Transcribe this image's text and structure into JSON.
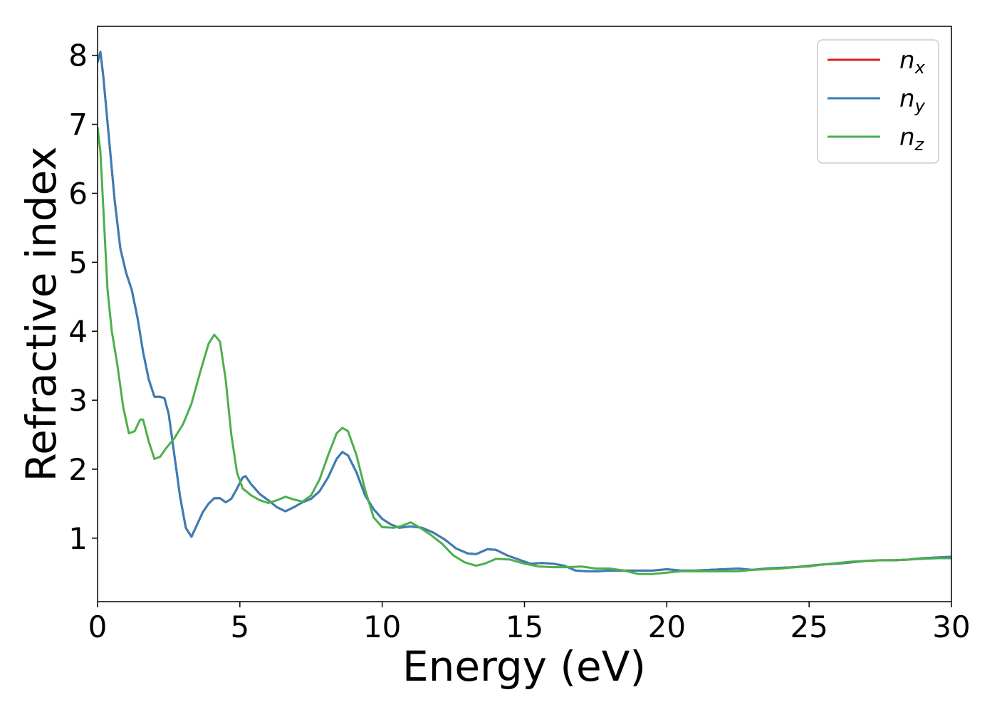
{
  "chart_data": {
    "type": "line",
    "title": "",
    "xlabel": "Energy (eV)",
    "ylabel": "Refractive index",
    "xlim": [
      0,
      30
    ],
    "ylim": [
      0.08,
      8.42
    ],
    "xticks": [
      0,
      5,
      10,
      15,
      20,
      25,
      30
    ],
    "xtick_labels": [
      "0",
      "5",
      "10",
      "15",
      "20",
      "25",
      "30"
    ],
    "yticks": [
      1,
      2,
      3,
      4,
      5,
      6,
      7,
      8
    ],
    "ytick_labels": [
      "1",
      "2",
      "3",
      "4",
      "5",
      "6",
      "7",
      "8"
    ],
    "grid": false,
    "legend": {
      "position": "top-right"
    },
    "series": [
      {
        "name": "n",
        "subscript": "x",
        "color": "#e41a1c",
        "points": [
          [
            0,
            7.9
          ],
          [
            0.1,
            8.05
          ],
          [
            0.2,
            7.7
          ],
          [
            0.4,
            6.8
          ],
          [
            0.6,
            5.9
          ],
          [
            0.8,
            5.2
          ],
          [
            1,
            4.85
          ],
          [
            1.2,
            4.6
          ],
          [
            1.4,
            4.2
          ],
          [
            1.6,
            3.7
          ],
          [
            1.8,
            3.3
          ],
          [
            2,
            3.05
          ],
          [
            2.2,
            3.05
          ],
          [
            2.35,
            3.03
          ],
          [
            2.5,
            2.8
          ],
          [
            2.7,
            2.2
          ],
          [
            2.9,
            1.6
          ],
          [
            3.1,
            1.15
          ],
          [
            3.3,
            1.02
          ],
          [
            3.5,
            1.2
          ],
          [
            3.7,
            1.38
          ],
          [
            3.9,
            1.5
          ],
          [
            4.1,
            1.58
          ],
          [
            4.3,
            1.58
          ],
          [
            4.5,
            1.52
          ],
          [
            4.7,
            1.57
          ],
          [
            4.9,
            1.72
          ],
          [
            5.1,
            1.88
          ],
          [
            5.2,
            1.9
          ],
          [
            5.4,
            1.78
          ],
          [
            5.7,
            1.64
          ],
          [
            6,
            1.55
          ],
          [
            6.3,
            1.45
          ],
          [
            6.6,
            1.39
          ],
          [
            6.9,
            1.45
          ],
          [
            7.2,
            1.52
          ],
          [
            7.5,
            1.57
          ],
          [
            7.8,
            1.68
          ],
          [
            8.1,
            1.88
          ],
          [
            8.4,
            2.15
          ],
          [
            8.6,
            2.25
          ],
          [
            8.8,
            2.2
          ],
          [
            9.1,
            1.95
          ],
          [
            9.4,
            1.62
          ],
          [
            9.7,
            1.42
          ],
          [
            10,
            1.28
          ],
          [
            10.3,
            1.2
          ],
          [
            10.6,
            1.15
          ],
          [
            11,
            1.17
          ],
          [
            11.4,
            1.15
          ],
          [
            11.8,
            1.08
          ],
          [
            12.2,
            0.98
          ],
          [
            12.6,
            0.85
          ],
          [
            13,
            0.78
          ],
          [
            13.3,
            0.77
          ],
          [
            13.7,
            0.84
          ],
          [
            14,
            0.83
          ],
          [
            14.4,
            0.75
          ],
          [
            14.8,
            0.69
          ],
          [
            15.2,
            0.63
          ],
          [
            15.6,
            0.64
          ],
          [
            16,
            0.63
          ],
          [
            16.4,
            0.6
          ],
          [
            16.8,
            0.53
          ],
          [
            17.2,
            0.52
          ],
          [
            17.6,
            0.52
          ],
          [
            18,
            0.53
          ],
          [
            18.5,
            0.53
          ],
          [
            19,
            0.53
          ],
          [
            19.5,
            0.53
          ],
          [
            20,
            0.55
          ],
          [
            20.5,
            0.53
          ],
          [
            21,
            0.53
          ],
          [
            21.5,
            0.54
          ],
          [
            22,
            0.55
          ],
          [
            22.5,
            0.56
          ],
          [
            23,
            0.54
          ],
          [
            23.5,
            0.56
          ],
          [
            24,
            0.57
          ],
          [
            24.5,
            0.58
          ],
          [
            25,
            0.6
          ],
          [
            25.5,
            0.62
          ],
          [
            26,
            0.63
          ],
          [
            26.5,
            0.65
          ],
          [
            27,
            0.67
          ],
          [
            27.5,
            0.68
          ],
          [
            28,
            0.68
          ],
          [
            28.5,
            0.69
          ],
          [
            29,
            0.71
          ],
          [
            29.5,
            0.72
          ],
          [
            30,
            0.73
          ]
        ]
      },
      {
        "name": "n",
        "subscript": "y",
        "color": "#377eb8",
        "points": [
          [
            0,
            7.9
          ],
          [
            0.1,
            8.05
          ],
          [
            0.2,
            7.7
          ],
          [
            0.4,
            6.8
          ],
          [
            0.6,
            5.9
          ],
          [
            0.8,
            5.2
          ],
          [
            1,
            4.85
          ],
          [
            1.2,
            4.6
          ],
          [
            1.4,
            4.2
          ],
          [
            1.6,
            3.7
          ],
          [
            1.8,
            3.3
          ],
          [
            2,
            3.05
          ],
          [
            2.2,
            3.05
          ],
          [
            2.35,
            3.03
          ],
          [
            2.5,
            2.8
          ],
          [
            2.7,
            2.2
          ],
          [
            2.9,
            1.6
          ],
          [
            3.1,
            1.15
          ],
          [
            3.3,
            1.02
          ],
          [
            3.5,
            1.2
          ],
          [
            3.7,
            1.38
          ],
          [
            3.9,
            1.5
          ],
          [
            4.1,
            1.58
          ],
          [
            4.3,
            1.58
          ],
          [
            4.5,
            1.52
          ],
          [
            4.7,
            1.57
          ],
          [
            4.9,
            1.72
          ],
          [
            5.1,
            1.88
          ],
          [
            5.2,
            1.9
          ],
          [
            5.4,
            1.78
          ],
          [
            5.7,
            1.64
          ],
          [
            6,
            1.55
          ],
          [
            6.3,
            1.45
          ],
          [
            6.6,
            1.39
          ],
          [
            6.9,
            1.45
          ],
          [
            7.2,
            1.52
          ],
          [
            7.5,
            1.57
          ],
          [
            7.8,
            1.68
          ],
          [
            8.1,
            1.88
          ],
          [
            8.4,
            2.15
          ],
          [
            8.6,
            2.25
          ],
          [
            8.8,
            2.2
          ],
          [
            9.1,
            1.95
          ],
          [
            9.4,
            1.62
          ],
          [
            9.7,
            1.42
          ],
          [
            10,
            1.28
          ],
          [
            10.3,
            1.2
          ],
          [
            10.6,
            1.15
          ],
          [
            11,
            1.17
          ],
          [
            11.4,
            1.15
          ],
          [
            11.8,
            1.08
          ],
          [
            12.2,
            0.98
          ],
          [
            12.6,
            0.85
          ],
          [
            13,
            0.78
          ],
          [
            13.3,
            0.77
          ],
          [
            13.7,
            0.84
          ],
          [
            14,
            0.83
          ],
          [
            14.4,
            0.75
          ],
          [
            14.8,
            0.69
          ],
          [
            15.2,
            0.63
          ],
          [
            15.6,
            0.64
          ],
          [
            16,
            0.63
          ],
          [
            16.4,
            0.6
          ],
          [
            16.8,
            0.53
          ],
          [
            17.2,
            0.52
          ],
          [
            17.6,
            0.52
          ],
          [
            18,
            0.53
          ],
          [
            18.5,
            0.53
          ],
          [
            19,
            0.53
          ],
          [
            19.5,
            0.53
          ],
          [
            20,
            0.55
          ],
          [
            20.5,
            0.53
          ],
          [
            21,
            0.53
          ],
          [
            21.5,
            0.54
          ],
          [
            22,
            0.55
          ],
          [
            22.5,
            0.56
          ],
          [
            23,
            0.54
          ],
          [
            23.5,
            0.56
          ],
          [
            24,
            0.57
          ],
          [
            24.5,
            0.58
          ],
          [
            25,
            0.6
          ],
          [
            25.5,
            0.62
          ],
          [
            26,
            0.63
          ],
          [
            26.5,
            0.65
          ],
          [
            27,
            0.67
          ],
          [
            27.5,
            0.68
          ],
          [
            28,
            0.68
          ],
          [
            28.5,
            0.69
          ],
          [
            29,
            0.71
          ],
          [
            29.5,
            0.72
          ],
          [
            30,
            0.73
          ]
        ]
      },
      {
        "name": "n",
        "subscript": "z",
        "color": "#4daf4a",
        "points": [
          [
            0,
            6.95
          ],
          [
            0.1,
            6.6
          ],
          [
            0.2,
            5.8
          ],
          [
            0.35,
            4.6
          ],
          [
            0.5,
            4.0
          ],
          [
            0.7,
            3.5
          ],
          [
            0.9,
            2.9
          ],
          [
            1.1,
            2.52
          ],
          [
            1.3,
            2.55
          ],
          [
            1.5,
            2.72
          ],
          [
            1.6,
            2.72
          ],
          [
            1.8,
            2.4
          ],
          [
            2,
            2.15
          ],
          [
            2.2,
            2.18
          ],
          [
            2.4,
            2.3
          ],
          [
            2.7,
            2.45
          ],
          [
            3,
            2.65
          ],
          [
            3.3,
            2.95
          ],
          [
            3.6,
            3.4
          ],
          [
            3.9,
            3.82
          ],
          [
            4.1,
            3.95
          ],
          [
            4.3,
            3.85
          ],
          [
            4.5,
            3.3
          ],
          [
            4.7,
            2.5
          ],
          [
            4.9,
            1.95
          ],
          [
            5.1,
            1.72
          ],
          [
            5.4,
            1.62
          ],
          [
            5.7,
            1.55
          ],
          [
            6,
            1.51
          ],
          [
            6.3,
            1.55
          ],
          [
            6.6,
            1.6
          ],
          [
            6.9,
            1.56
          ],
          [
            7.2,
            1.53
          ],
          [
            7.5,
            1.62
          ],
          [
            7.8,
            1.85
          ],
          [
            8.1,
            2.2
          ],
          [
            8.4,
            2.52
          ],
          [
            8.6,
            2.6
          ],
          [
            8.8,
            2.55
          ],
          [
            9.1,
            2.2
          ],
          [
            9.4,
            1.7
          ],
          [
            9.7,
            1.3
          ],
          [
            10,
            1.16
          ],
          [
            10.4,
            1.15
          ],
          [
            10.7,
            1.18
          ],
          [
            11,
            1.23
          ],
          [
            11.3,
            1.16
          ],
          [
            11.7,
            1.05
          ],
          [
            12.1,
            0.92
          ],
          [
            12.5,
            0.75
          ],
          [
            12.9,
            0.65
          ],
          [
            13.3,
            0.6
          ],
          [
            13.6,
            0.63
          ],
          [
            14,
            0.7
          ],
          [
            14.5,
            0.69
          ],
          [
            15,
            0.63
          ],
          [
            15.5,
            0.59
          ],
          [
            16,
            0.58
          ],
          [
            16.5,
            0.58
          ],
          [
            17,
            0.59
          ],
          [
            17.5,
            0.56
          ],
          [
            18,
            0.56
          ],
          [
            18.5,
            0.53
          ],
          [
            19,
            0.48
          ],
          [
            19.5,
            0.48
          ],
          [
            20,
            0.5
          ],
          [
            20.5,
            0.52
          ],
          [
            21,
            0.52
          ],
          [
            21.5,
            0.52
          ],
          [
            22,
            0.52
          ],
          [
            22.5,
            0.52
          ],
          [
            23,
            0.54
          ],
          [
            23.5,
            0.55
          ],
          [
            24,
            0.56
          ],
          [
            24.5,
            0.58
          ],
          [
            25,
            0.59
          ],
          [
            25.5,
            0.62
          ],
          [
            26,
            0.64
          ],
          [
            26.5,
            0.66
          ],
          [
            27,
            0.67
          ],
          [
            27.5,
            0.68
          ],
          [
            28,
            0.68
          ],
          [
            28.5,
            0.69
          ],
          [
            29,
            0.7
          ],
          [
            29.5,
            0.71
          ],
          [
            30,
            0.71
          ]
        ]
      }
    ]
  }
}
